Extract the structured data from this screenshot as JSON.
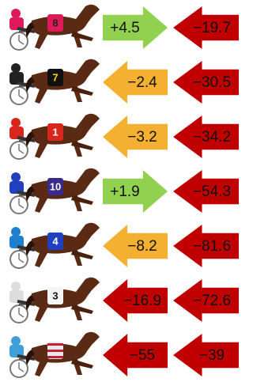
{
  "rows": [
    {
      "horse": "8",
      "cloth": "#e0195a",
      "number_color": "#222222",
      "driver": "#e0195a",
      "change": {
        "text": "+4.5",
        "color": "#92d050",
        "direction": "right"
      },
      "total": {
        "text": "−19.7",
        "color": "#c00000",
        "direction": "left"
      }
    },
    {
      "horse": "7",
      "cloth": "#111111",
      "number_color": "#ffd700",
      "driver": "#222222",
      "change": {
        "text": "−2.4",
        "color": "#f4b030",
        "direction": "left"
      },
      "total": {
        "text": "−30.5",
        "color": "#c00000",
        "direction": "left"
      }
    },
    {
      "horse": "1",
      "cloth": "#d9261c",
      "number_color": "#ffffff",
      "driver": "#d9261c",
      "change": {
        "text": "−3.2",
        "color": "#f4b030",
        "direction": "left"
      },
      "total": {
        "text": "−34.2",
        "color": "#c00000",
        "direction": "left"
      }
    },
    {
      "horse": "10",
      "cloth": "#3a2a8a",
      "number_color": "#ffffff",
      "driver": "#2040c0",
      "change": {
        "text": "+1.9",
        "color": "#92d050",
        "direction": "right"
      },
      "total": {
        "text": "−54.3",
        "color": "#c00000",
        "direction": "left"
      }
    },
    {
      "horse": "4",
      "cloth": "#2040c0",
      "number_color": "#ffffff",
      "driver": "#1e7fd0",
      "change": {
        "text": "−8.2",
        "color": "#f4b030",
        "direction": "left"
      },
      "total": {
        "text": "−81.6",
        "color": "#c00000",
        "direction": "left"
      }
    },
    {
      "horse": "3",
      "cloth": "#f4f4f4",
      "number_color": "#111111",
      "driver": "#dddddd",
      "change": {
        "text": "−16.9",
        "color": "#c00000",
        "direction": "left"
      },
      "total": {
        "text": "−72.6",
        "color": "#c00000",
        "direction": "left"
      }
    },
    {
      "cloth": "#e8e8e8",
      "stripe": "#c0203a",
      "driver": "#3fa0d8",
      "change": {
        "text": "−55",
        "color": "#c00000",
        "direction": "left"
      },
      "total": {
        "text": "−39",
        "color": "#c00000",
        "direction": "left"
      }
    }
  ]
}
